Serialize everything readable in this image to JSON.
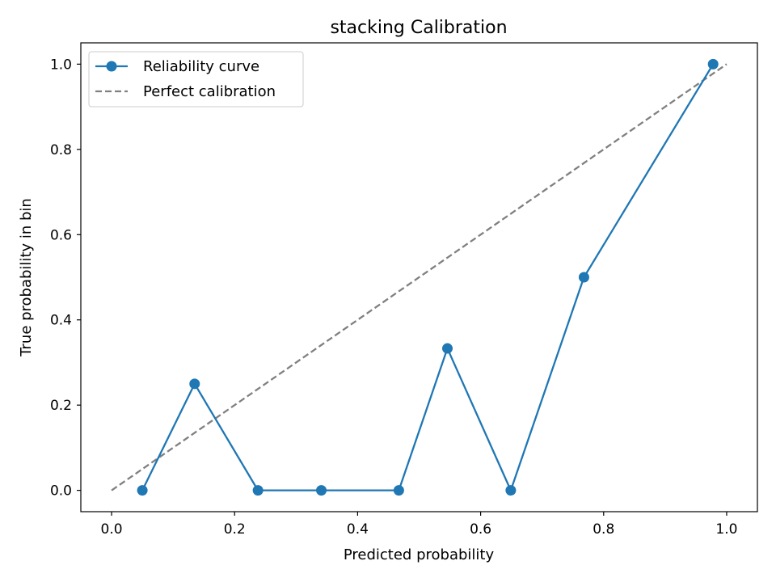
{
  "chart_data": {
    "type": "line",
    "title": "stacking Calibration",
    "xlabel": "Predicted probability",
    "ylabel": "True probability in bin",
    "xlim": [
      -0.05,
      1.05
    ],
    "ylim": [
      -0.05,
      1.05
    ],
    "xticks": [
      0.0,
      0.2,
      0.4,
      0.6,
      0.8,
      1.0
    ],
    "xtick_labels": [
      "0.0",
      "0.2",
      "0.4",
      "0.6",
      "0.8",
      "1.0"
    ],
    "yticks": [
      0.0,
      0.2,
      0.4,
      0.6,
      0.8,
      1.0
    ],
    "ytick_labels": [
      "0.0",
      "0.2",
      "0.4",
      "0.6",
      "0.8",
      "1.0"
    ],
    "grid": false,
    "legend_position": "upper-left",
    "series": [
      {
        "name": "Reliability curve",
        "style": "solid-with-markers",
        "color": "#1f77b4",
        "x": [
          0.05,
          0.135,
          0.238,
          0.341,
          0.467,
          0.546,
          0.649,
          0.768,
          0.978
        ],
        "y": [
          0.0,
          0.25,
          0.0,
          0.0,
          0.0,
          0.333,
          0.0,
          0.5,
          1.0
        ]
      },
      {
        "name": "Perfect calibration",
        "style": "dashed",
        "color": "#808080",
        "x": [
          0.0,
          1.0
        ],
        "y": [
          0.0,
          1.0
        ]
      }
    ]
  }
}
